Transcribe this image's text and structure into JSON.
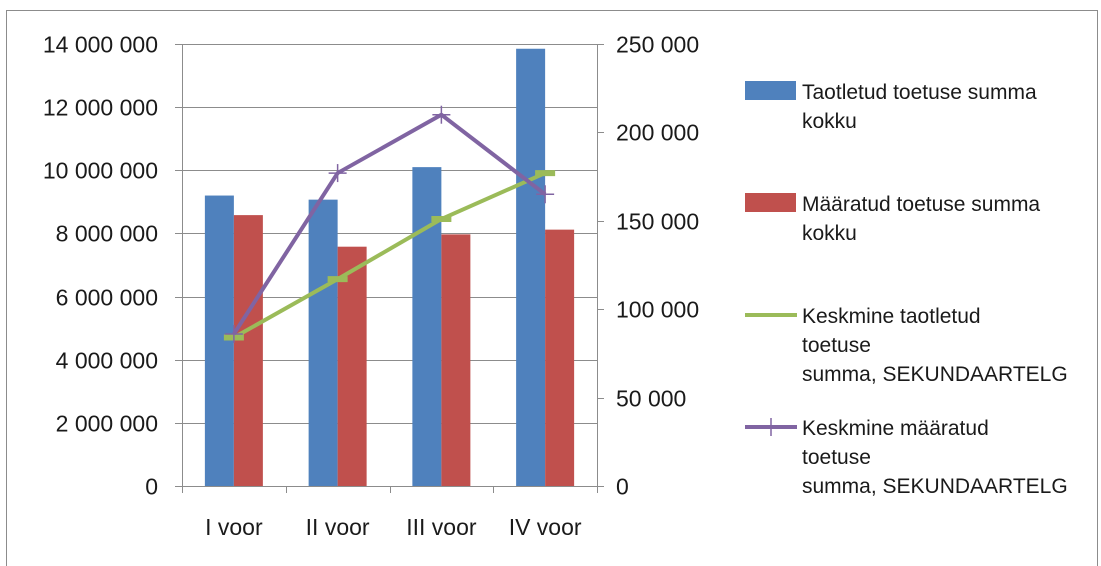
{
  "chart_data": {
    "type": "bar",
    "categories": [
      "I voor",
      "II voor",
      "III voor",
      "IV voor"
    ],
    "primary_axis": {
      "ylim": [
        0,
        14000000
      ],
      "ticks": [
        "0",
        "2 000 000",
        "4 000 000",
        "6 000 000",
        "8 000 000",
        "10 000 000",
        "12 000 000",
        "14 000 000"
      ]
    },
    "secondary_axis": {
      "ylim": [
        0,
        250000
      ],
      "ticks": [
        "0",
        "50 000",
        "100 000",
        "150 000",
        "200 000",
        "250 000"
      ]
    },
    "grid": true,
    "legend_position": "right",
    "series": [
      {
        "name": "Taotletud toetuse summa kokku",
        "legend_lines": [
          "Taotletud toetuse summa",
          "kokku"
        ],
        "kind": "bar",
        "axis": "primary",
        "color": "#4f81bd",
        "values": [
          9200000,
          9070000,
          10100000,
          13850000
        ]
      },
      {
        "name": "Määratud toetuse summa kokku",
        "legend_lines": [
          "Määratud toetuse summa",
          "kokku"
        ],
        "kind": "bar",
        "axis": "primary",
        "color": "#c0504d",
        "values": [
          8580000,
          7580000,
          7970000,
          8120000
        ]
      },
      {
        "name": "Keskmine taotletud toetuse summa, SEKUNDAARTELG",
        "legend_lines": [
          "Keskmine taotletud",
          "toetuse",
          "summa, SEKUNDAARTELG"
        ],
        "kind": "line",
        "marker": "dash",
        "axis": "secondary",
        "color": "#9bbb59",
        "values": [
          84000,
          117000,
          151000,
          177000
        ]
      },
      {
        "name": "Keskmine määratud toetuse summa, SEKUNDAARTELG",
        "legend_lines": [
          "Keskmine määratud",
          "toetuse",
          "summa, SEKUNDAARTELG"
        ],
        "kind": "line",
        "marker": "plus",
        "axis": "secondary",
        "color": "#8064a2",
        "values": [
          86000,
          177000,
          210000,
          165000
        ]
      }
    ]
  }
}
